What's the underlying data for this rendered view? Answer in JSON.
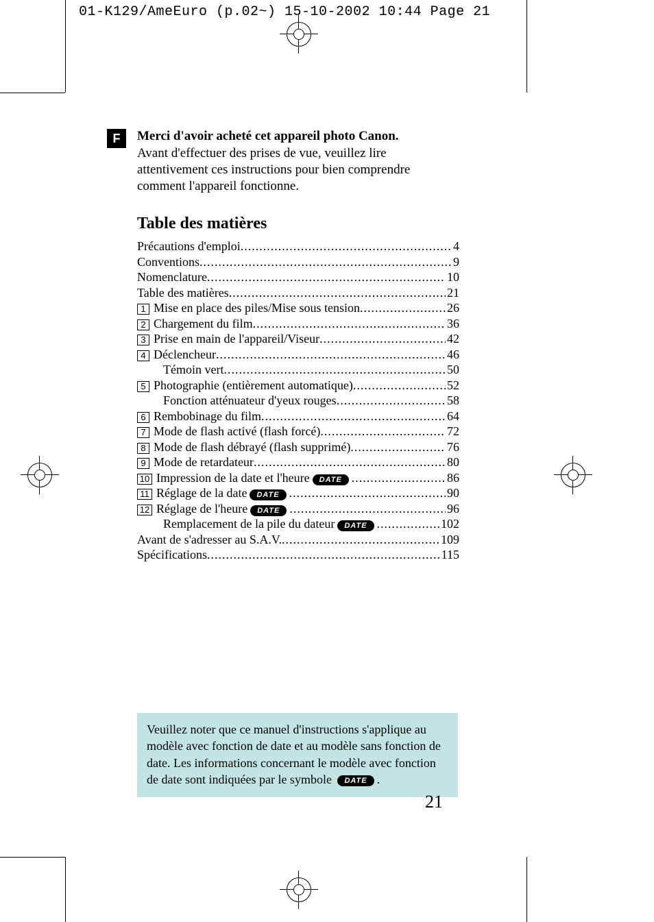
{
  "print_header": "01-K129/AmeEuro (p.02~)  15-10-2002  10:44  Page 21",
  "lang_badge": "F",
  "thanks_title": "Merci d'avoir acheté cet appareil photo Canon.",
  "thanks_body": "Avant d'effectuer des prises de vue, veuillez lire attentivement ces instructions pour bien comprendre comment l'appareil fonctionne.",
  "toc_title": "Table des matières",
  "date_label": "DATE",
  "toc": [
    {
      "num": "",
      "indent": false,
      "label": "Précautions d'emploi",
      "date": false,
      "page": "4"
    },
    {
      "num": "",
      "indent": false,
      "label": "Conventions",
      "date": false,
      "page": "9"
    },
    {
      "num": "",
      "indent": false,
      "label": "Nomenclature",
      "date": false,
      "page": "10"
    },
    {
      "num": "",
      "indent": false,
      "label": "Table des matières",
      "date": false,
      "page": "21"
    },
    {
      "num": "1",
      "indent": false,
      "label": "Mise en place des piles/Mise sous tension",
      "date": false,
      "page": "26"
    },
    {
      "num": "2",
      "indent": false,
      "label": "Chargement du film",
      "date": false,
      "page": "36"
    },
    {
      "num": "3",
      "indent": false,
      "label": "Prise en main de l'appareil/Viseur",
      "date": false,
      "page": "42"
    },
    {
      "num": "4",
      "indent": false,
      "label": "Déclencheur",
      "date": false,
      "page": "46"
    },
    {
      "num": "",
      "indent": true,
      "label": "Témoin vert",
      "date": false,
      "page": "50"
    },
    {
      "num": "5",
      "indent": false,
      "label": "Photographie (entièrement automatique)",
      "date": false,
      "page": "52"
    },
    {
      "num": "",
      "indent": true,
      "label": "Fonction atténuateur d'yeux rouges",
      "date": false,
      "page": "58"
    },
    {
      "num": "6",
      "indent": false,
      "label": "Rembobinage du film",
      "date": false,
      "page": "64"
    },
    {
      "num": "7",
      "indent": false,
      "label": "Mode de flash activé (flash forcé)",
      "date": false,
      "page": "72"
    },
    {
      "num": "8",
      "indent": false,
      "label": "Mode de flash débrayé (flash supprimé)",
      "date": false,
      "page": "76"
    },
    {
      "num": "9",
      "indent": false,
      "label": "Mode de retardateur",
      "date": false,
      "page": "80"
    },
    {
      "num": "10",
      "indent": false,
      "label": "Impression de la date et l'heure",
      "date": true,
      "page": "86"
    },
    {
      "num": "11",
      "indent": false,
      "label": "Réglage de la date",
      "date": true,
      "page": "90"
    },
    {
      "num": "12",
      "indent": false,
      "label": "Réglage de l'heure",
      "date": true,
      "page": "96"
    },
    {
      "num": "",
      "indent": true,
      "label": "Remplacement de la pile du dateur",
      "date": true,
      "page": "102"
    },
    {
      "num": "",
      "indent": false,
      "label": "Avant de s'adresser au S.A.V.",
      "date": false,
      "page": "109"
    },
    {
      "num": "",
      "indent": false,
      "label": "Spécifications",
      "date": false,
      "page": "115"
    }
  ],
  "note_pre": "Veuillez noter que ce manuel d'instructions s'applique au modèle avec fonction de date et au modèle sans fonction de date. Les informations concernant le modèle avec fonction de date sont indiquées par le symbole",
  "note_post": ".",
  "page_number": "21",
  "colors": {
    "note_bg": "#c2e4e3",
    "text": "#000000",
    "badge_bg": "#000000",
    "badge_fg": "#ffffff"
  }
}
